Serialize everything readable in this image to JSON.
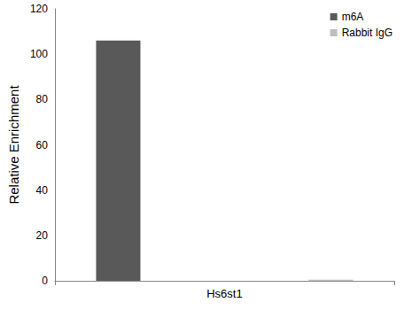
{
  "chart_data": {
    "type": "bar",
    "y_label": "Relative Enrichment",
    "categories": [
      "Hs6st1"
    ],
    "series": [
      {
        "name": "m6A",
        "color": "#595959",
        "values": [
          106
        ]
      },
      {
        "name": "Rabbit IgG",
        "color": "#bfbfbf",
        "values": [
          0.5
        ]
      }
    ],
    "ylim": [
      0,
      120
    ],
    "yticks": [
      0,
      20,
      40,
      60,
      80,
      100,
      120
    ],
    "grid": false,
    "legend": "upper right"
  }
}
